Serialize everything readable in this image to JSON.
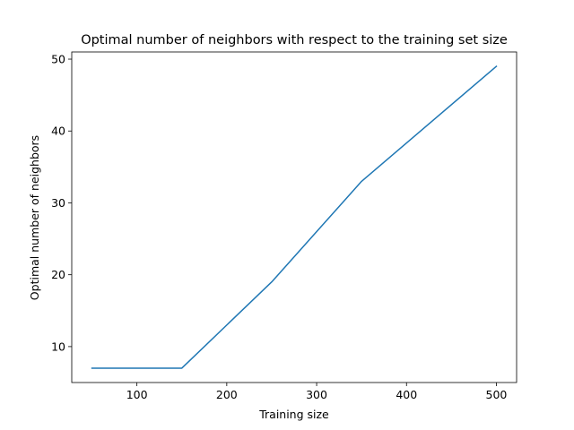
{
  "chart_data": {
    "type": "line",
    "title": "Optimal number of neighbors with respect to the training set size",
    "xlabel": "Training size",
    "ylabel": "Optimal number of neighbors",
    "x": [
      50,
      150,
      250,
      350,
      500
    ],
    "series": [
      {
        "values": [
          7,
          7,
          19,
          33,
          49
        ],
        "color": "#1f77b4"
      }
    ],
    "xlim": [
      27.5,
      522.5
    ],
    "ylim": [
      5,
      51
    ],
    "xticks": [
      100,
      200,
      300,
      400,
      500
    ],
    "yticks": [
      10,
      20,
      30,
      40,
      50
    ],
    "grid": false,
    "legend": "none"
  }
}
